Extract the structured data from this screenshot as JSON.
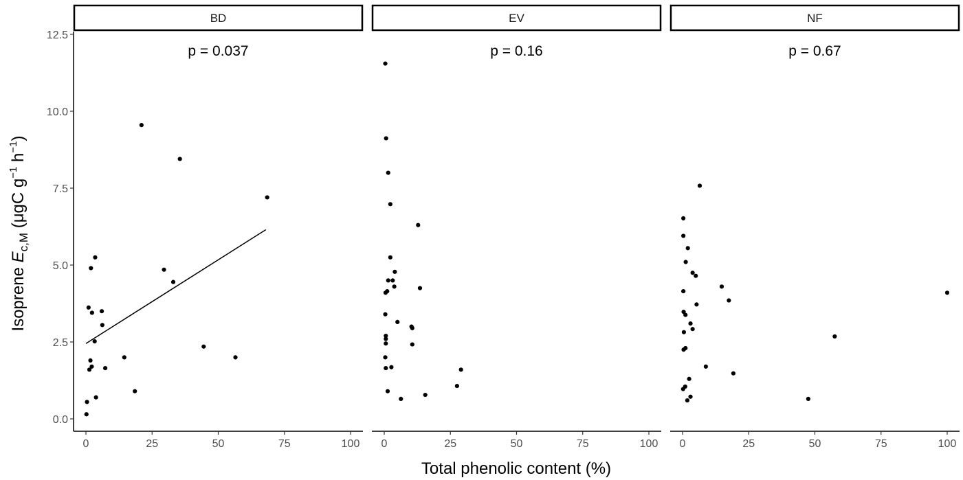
{
  "chart_data": {
    "type": "scatter",
    "xlabel": "Total phenolic content (%)",
    "ylabel": {
      "prefix": "Isoprene ",
      "symbol": "E",
      "subscript": "c,M",
      "units_open": " (μgC g",
      "exp1": "−1",
      "units_mid": " h",
      "exp2": "−1",
      "units_close": ")"
    },
    "xlim": [
      0,
      100
    ],
    "ylim": [
      0,
      12.5
    ],
    "x_ticks": [
      "0",
      "25",
      "50",
      "75",
      "100"
    ],
    "y_ticks": [
      "0.0",
      "2.5",
      "5.0",
      "7.5",
      "10.0",
      "12.5"
    ],
    "grid": false,
    "panels": [
      {
        "name": "BD",
        "annotation": "p = 0.037",
        "trend_line": {
          "x": [
            0,
            68
          ],
          "y": [
            2.45,
            6.15
          ]
        },
        "points": [
          {
            "x": 0.2,
            "y": 0.15
          },
          {
            "x": 0.4,
            "y": 0.55
          },
          {
            "x": 3.8,
            "y": 0.7
          },
          {
            "x": 1.3,
            "y": 1.6
          },
          {
            "x": 2.2,
            "y": 1.7
          },
          {
            "x": 1.7,
            "y": 1.9
          },
          {
            "x": 1.0,
            "y": 3.62
          },
          {
            "x": 2.3,
            "y": 3.45
          },
          {
            "x": 1.9,
            "y": 4.9
          },
          {
            "x": 3.5,
            "y": 5.25
          },
          {
            "x": 3.3,
            "y": 2.52
          },
          {
            "x": 6.0,
            "y": 3.5
          },
          {
            "x": 6.2,
            "y": 3.05
          },
          {
            "x": 7.3,
            "y": 1.65
          },
          {
            "x": 14.5,
            "y": 2.0
          },
          {
            "x": 18.5,
            "y": 0.9
          },
          {
            "x": 21.0,
            "y": 9.55
          },
          {
            "x": 29.5,
            "y": 4.85
          },
          {
            "x": 33.0,
            "y": 4.45
          },
          {
            "x": 35.5,
            "y": 8.45
          },
          {
            "x": 44.5,
            "y": 2.35
          },
          {
            "x": 56.5,
            "y": 2.0
          },
          {
            "x": 68.5,
            "y": 7.2
          }
        ]
      },
      {
        "name": "EV",
        "annotation": "p = 0.16",
        "points": [
          {
            "x": 0.4,
            "y": 11.55
          },
          {
            "x": 0.7,
            "y": 9.12
          },
          {
            "x": 1.5,
            "y": 8.0
          },
          {
            "x": 2.3,
            "y": 6.98
          },
          {
            "x": 12.8,
            "y": 6.3
          },
          {
            "x": 2.3,
            "y": 5.25
          },
          {
            "x": 4.0,
            "y": 4.78
          },
          {
            "x": 1.5,
            "y": 4.5
          },
          {
            "x": 3.2,
            "y": 4.5
          },
          {
            "x": 3.8,
            "y": 4.3
          },
          {
            "x": 0.5,
            "y": 4.1
          },
          {
            "x": 1.1,
            "y": 4.15
          },
          {
            "x": 13.5,
            "y": 4.25
          },
          {
            "x": 0.4,
            "y": 3.4
          },
          {
            "x": 5.0,
            "y": 3.15
          },
          {
            "x": 10.3,
            "y": 3.0
          },
          {
            "x": 10.6,
            "y": 2.95
          },
          {
            "x": 0.6,
            "y": 2.7
          },
          {
            "x": 0.6,
            "y": 2.6
          },
          {
            "x": 0.6,
            "y": 2.45
          },
          {
            "x": 10.6,
            "y": 2.42
          },
          {
            "x": 0.4,
            "y": 2.0
          },
          {
            "x": 0.6,
            "y": 1.65
          },
          {
            "x": 2.7,
            "y": 1.68
          },
          {
            "x": 29.0,
            "y": 1.6
          },
          {
            "x": 27.5,
            "y": 1.07
          },
          {
            "x": 1.3,
            "y": 0.9
          },
          {
            "x": 15.5,
            "y": 0.78
          },
          {
            "x": 6.3,
            "y": 0.65
          }
        ]
      },
      {
        "name": "NF",
        "annotation": "p = 0.67",
        "points": [
          {
            "x": 6.5,
            "y": 7.58
          },
          {
            "x": 0.3,
            "y": 6.52
          },
          {
            "x": 0.3,
            "y": 5.95
          },
          {
            "x": 2.0,
            "y": 5.55
          },
          {
            "x": 1.2,
            "y": 5.1
          },
          {
            "x": 3.8,
            "y": 4.75
          },
          {
            "x": 5.0,
            "y": 4.65
          },
          {
            "x": 0.3,
            "y": 4.15
          },
          {
            "x": 14.8,
            "y": 4.3
          },
          {
            "x": 17.5,
            "y": 3.85
          },
          {
            "x": 100.0,
            "y": 4.1
          },
          {
            "x": 5.3,
            "y": 3.72
          },
          {
            "x": 0.4,
            "y": 3.48
          },
          {
            "x": 1.1,
            "y": 3.38
          },
          {
            "x": 3.0,
            "y": 3.1
          },
          {
            "x": 3.8,
            "y": 2.92
          },
          {
            "x": 0.5,
            "y": 2.82
          },
          {
            "x": 57.5,
            "y": 2.68
          },
          {
            "x": 0.4,
            "y": 2.25
          },
          {
            "x": 1.1,
            "y": 2.3
          },
          {
            "x": 8.8,
            "y": 1.7
          },
          {
            "x": 19.2,
            "y": 1.48
          },
          {
            "x": 2.5,
            "y": 1.3
          },
          {
            "x": 1.0,
            "y": 1.05
          },
          {
            "x": 0.2,
            "y": 0.97
          },
          {
            "x": 3.0,
            "y": 0.72
          },
          {
            "x": 1.8,
            "y": 0.6
          },
          {
            "x": 47.5,
            "y": 0.65
          }
        ]
      }
    ]
  }
}
